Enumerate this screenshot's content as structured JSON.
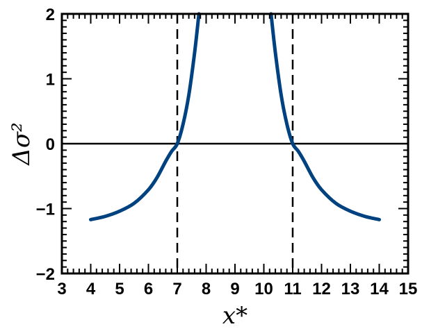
{
  "chart_data": {
    "type": "line",
    "title": "",
    "xlabel": "x*",
    "ylabel": "Δσ²",
    "xlim": [
      3,
      15
    ],
    "ylim": [
      -2,
      2
    ],
    "x_major_ticks": [
      3,
      4,
      5,
      6,
      7,
      8,
      9,
      10,
      11,
      12,
      13,
      14,
      15
    ],
    "y_major_ticks": [
      -2,
      -1,
      0,
      1,
      2
    ],
    "x_tick_labels": [
      "3",
      "4",
      "5",
      "6",
      "7",
      "8",
      "9",
      "10",
      "11",
      "12",
      "13",
      "14",
      "15"
    ],
    "y_tick_labels": [
      "−2",
      "−1",
      "0",
      "1",
      "2"
    ],
    "x_minor_step": 0.2,
    "y_minor_step": 0.1,
    "grid": false,
    "legend": "none",
    "series_color": "#00427f",
    "series": [
      {
        "segments": [
          {
            "x": [
              4.0,
              4.5,
              5.0,
              5.5,
              6.0,
              6.3,
              6.6,
              6.8,
              7.0,
              7.2,
              7.4,
              7.6,
              7.75
            ],
            "y": [
              -1.17,
              -1.12,
              -1.04,
              -0.92,
              -0.71,
              -0.52,
              -0.27,
              -0.12,
              0.0,
              0.3,
              0.75,
              1.4,
              2.0
            ]
          },
          {
            "x": [
              10.25,
              10.4,
              10.6,
              10.8,
              11.0,
              11.2,
              11.4,
              11.7,
              12.0,
              12.5,
              13.0,
              13.5,
              14.0
            ],
            "y": [
              2.0,
              1.4,
              0.75,
              0.3,
              0.0,
              -0.12,
              -0.27,
              -0.52,
              -0.71,
              -0.92,
              -1.04,
              -1.12,
              -1.17
            ]
          }
        ]
      }
    ],
    "reference_lines": {
      "horizontal": [
        0
      ],
      "vertical_dashed": [
        7,
        11
      ]
    }
  }
}
